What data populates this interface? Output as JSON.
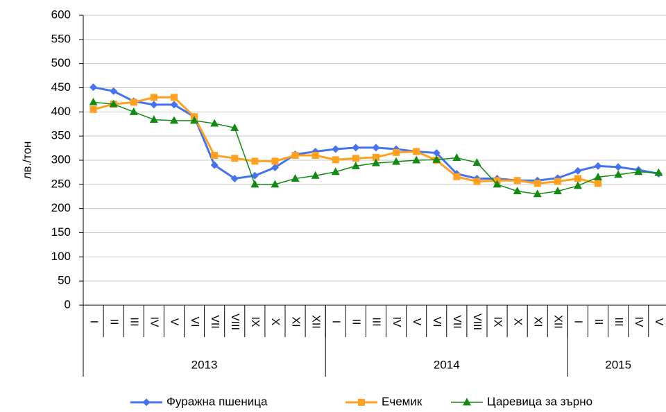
{
  "chart_data": {
    "type": "line",
    "y_label": "лв./тон",
    "groups": [
      {
        "label": "2013",
        "categories": [
          "I",
          "II",
          "III",
          "IV",
          "V",
          "VI",
          "VII",
          "VIII",
          "IX",
          "X",
          "XI",
          "XII"
        ]
      },
      {
        "label": "2014",
        "categories": [
          "I",
          "II",
          "III",
          "IV",
          "V",
          "VI",
          "VII",
          "VIII",
          "IX",
          "X",
          "XI",
          "XII"
        ]
      },
      {
        "label": "2015",
        "categories": [
          "I",
          "II",
          "III",
          "IV",
          "V"
        ]
      }
    ],
    "series": [
      {
        "name": "Фуражна пшеница",
        "color": "#4472f0",
        "marker": "diamond",
        "values": [
          451,
          443,
          422,
          415,
          415,
          390,
          290,
          262,
          268,
          285,
          312,
          318,
          323,
          326,
          326,
          323,
          318,
          315,
          272,
          262,
          262,
          258,
          258,
          263,
          278,
          288,
          286,
          280,
          272
        ]
      },
      {
        "name": "Ечемик",
        "color": "#ffa01e",
        "marker": "square",
        "values": [
          405,
          416,
          420,
          430,
          430,
          390,
          310,
          304,
          298,
          298,
          310,
          310,
          301,
          304,
          306,
          316,
          318,
          300,
          266,
          256,
          258,
          258,
          252,
          256,
          262,
          252,
          null,
          null,
          null
        ]
      },
      {
        "name": "Царевица за зърно",
        "color": "#138a13",
        "marker": "triangle",
        "values": [
          420,
          416,
          400,
          384,
          382,
          382,
          376,
          367,
          250,
          250,
          262,
          268,
          276,
          288,
          294,
          297,
          300,
          301,
          305,
          295,
          250,
          236,
          230,
          236,
          247,
          265,
          270,
          276,
          274
        ]
      }
    ],
    "ylim": [
      0,
      600
    ],
    "yticks": [
      0,
      50,
      100,
      150,
      200,
      250,
      300,
      350,
      400,
      450,
      500,
      550,
      600
    ],
    "grid": true
  }
}
